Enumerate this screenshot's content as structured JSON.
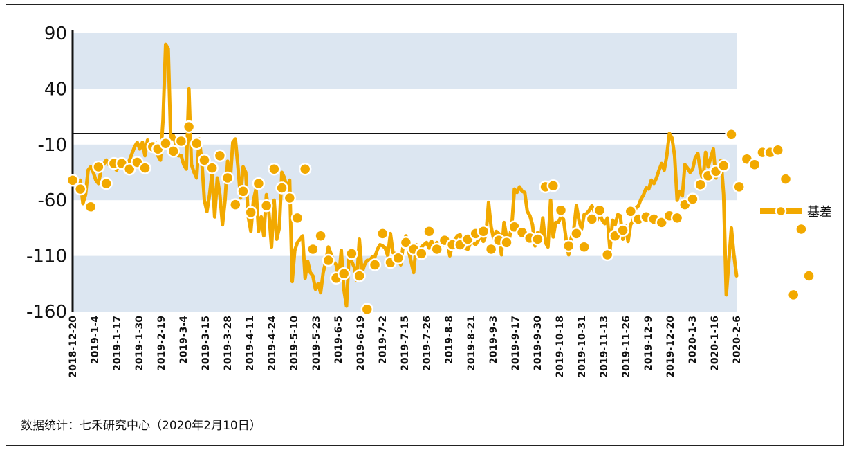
{
  "chart_data": {
    "type": "line",
    "ylim": [
      -160,
      90
    ],
    "yticks": [
      90,
      40,
      -10,
      -60,
      -110,
      -160
    ],
    "ytick_labels": [
      "90",
      "40",
      "-10",
      "-60",
      "-110",
      "-160"
    ],
    "zero_line": 0,
    "bands": [
      [
        40,
        90
      ],
      [
        -60,
        -10
      ],
      [
        -160,
        -110
      ]
    ],
    "colors": {
      "line": "#F2A900",
      "marker_fill": "#F2A900",
      "marker_stroke": "#ffffff",
      "band": "#DCE6F1",
      "axis": "#111111"
    },
    "x_tick_labels": [
      "2018-12-20",
      "2019-1-4",
      "2019-1-17",
      "2019-1-30",
      "2019-2-19",
      "2019-3-4",
      "2019-3-15",
      "2019-3-28",
      "2019-4-11",
      "2019-4-24",
      "2019-5-10",
      "2019-5-23",
      "2019-6-5",
      "2019-6-19",
      "2019-7-2",
      "2019-7-15",
      "2019-7-26",
      "2019-8-8",
      "2019-8-21",
      "2019-9-3",
      "2019-9-17",
      "2019-9-30",
      "2019-10-18",
      "2019-10-31",
      "2019-11-13",
      "2019-11-26",
      "2019-12-9",
      "2019-12-20",
      "2020-1-3",
      "2020-1-16",
      "2020-2-6"
    ],
    "series": [
      {
        "name": "基差",
        "values": [
          -40,
          -45,
          -48,
          -42,
          -63,
          -55,
          -33,
          -30,
          -35,
          -42,
          -45,
          -33,
          -28,
          -24,
          -28,
          -26,
          -30,
          -33,
          -28,
          -26,
          -30,
          -33,
          -24,
          -18,
          -12,
          -8,
          -14,
          -8,
          -20,
          -6,
          -12,
          -15,
          -8,
          -20,
          -24,
          12,
          80,
          76,
          -6,
          -2,
          -10,
          -20,
          -20,
          -28,
          -32,
          40,
          -28,
          -35,
          -40,
          -5,
          -25,
          -60,
          -70,
          -55,
          -35,
          -75,
          -40,
          -55,
          -82,
          -60,
          -25,
          -42,
          -8,
          -5,
          -30,
          -58,
          -30,
          -35,
          -75,
          -88,
          -60,
          -50,
          -88,
          -75,
          -92,
          -55,
          -72,
          -102,
          -60,
          -95,
          -85,
          -35,
          -40,
          -50,
          -42,
          -133,
          -105,
          -98,
          -95,
          -92,
          -130,
          -115,
          -125,
          -128,
          -140,
          -135,
          -143,
          -125,
          -115,
          -102,
          -108,
          -115,
          -118,
          -130,
          -105,
          -140,
          -155,
          -108,
          -115,
          -120,
          -132,
          -95,
          -125,
          -118,
          -114,
          -114,
          -111,
          -111,
          -104,
          -100,
          -101,
          -103,
          -110,
          -90,
          -107,
          -108,
          -112,
          -118,
          -100,
          -92,
          -105,
          -115,
          -125,
          -100,
          -108,
          -102,
          -100,
          -98,
          -103,
          -97,
          -103,
          -98,
          -103,
          -101,
          -96,
          -96,
          -110,
          -100,
          -95,
          -92,
          -91,
          -103,
          -103,
          -104,
          -98,
          -98,
          -100,
          -96,
          -91,
          -97,
          -91,
          -62,
          -84,
          -95,
          -88,
          -90,
          -109,
          -80,
          -93,
          -95,
          -83,
          -50,
          -53,
          -48,
          -52,
          -53,
          -70,
          -74,
          -82,
          -101,
          -89,
          -98,
          -76,
          -98,
          -102,
          -60,
          -93,
          -80,
          -80,
          -75,
          -77,
          -95,
          -109,
          -94,
          -86,
          -65,
          -78,
          -86,
          -73,
          -72,
          -69,
          -65,
          -71,
          -78,
          -72,
          -78,
          -81,
          -76,
          -105,
          -78,
          -82,
          -73,
          -74,
          -95,
          -83,
          -97,
          -82,
          -78,
          -67,
          -65,
          -59,
          -55,
          -49,
          -50,
          -42,
          -45,
          -40,
          -33,
          -27,
          -33,
          -20,
          0,
          -4,
          -20,
          -60,
          -52,
          -56,
          -28,
          -31,
          -35,
          -32,
          -22,
          -18,
          -34,
          -42,
          -17,
          -30,
          -22,
          -14,
          -40,
          -30,
          -24,
          -55,
          -145,
          -115,
          -85,
          -110,
          -128
        ],
        "markers": [
          [
            0,
            -42
          ],
          [
            3,
            -50
          ],
          [
            7,
            -66
          ],
          [
            10,
            -30
          ],
          [
            13,
            -45
          ],
          [
            16,
            -27
          ],
          [
            19,
            -27
          ],
          [
            22,
            -32
          ],
          [
            25,
            -26
          ],
          [
            28,
            -31
          ],
          [
            31,
            -12
          ],
          [
            33,
            -14
          ],
          [
            36,
            -9
          ],
          [
            39,
            -16
          ],
          [
            42,
            -7
          ],
          [
            45,
            6
          ],
          [
            48,
            -9
          ],
          [
            51,
            -24
          ],
          [
            54,
            -31
          ],
          [
            57,
            -20
          ],
          [
            60,
            -40
          ],
          [
            63,
            -64
          ],
          [
            66,
            -52
          ],
          [
            69,
            -71
          ],
          [
            72,
            -45
          ],
          [
            75,
            -65
          ],
          [
            78,
            -32
          ],
          [
            81,
            -49
          ],
          [
            84,
            -58
          ],
          [
            87,
            -76
          ],
          [
            90,
            -32
          ],
          [
            93,
            -104
          ],
          [
            96,
            -92
          ],
          [
            99,
            -114
          ],
          [
            102,
            -130
          ],
          [
            105,
            -126
          ],
          [
            108,
            -108
          ],
          [
            111,
            -128
          ],
          [
            114,
            -158
          ],
          [
            117,
            -118
          ],
          [
            120,
            -90
          ],
          [
            123,
            -116
          ],
          [
            126,
            -112
          ],
          [
            129,
            -98
          ],
          [
            132,
            -104
          ],
          [
            135,
            -108
          ],
          [
            138,
            -88
          ],
          [
            141,
            -104
          ],
          [
            144,
            -96
          ],
          [
            147,
            -100
          ],
          [
            150,
            -100
          ],
          [
            153,
            -95
          ],
          [
            156,
            -90
          ],
          [
            159,
            -88
          ],
          [
            162,
            -104
          ],
          [
            165,
            -96
          ],
          [
            168,
            -98
          ],
          [
            171,
            -84
          ],
          [
            174,
            -89
          ],
          [
            177,
            -94
          ],
          [
            180,
            -95
          ],
          [
            183,
            -48
          ],
          [
            186,
            -47
          ],
          [
            189,
            -69
          ],
          [
            192,
            -101
          ],
          [
            195,
            -90
          ],
          [
            198,
            -102
          ],
          [
            201,
            -77
          ],
          [
            204,
            -69
          ],
          [
            207,
            -109
          ],
          [
            210,
            -92
          ],
          [
            213,
            -87
          ],
          [
            216,
            -70
          ],
          [
            219,
            -77
          ],
          [
            222,
            -75
          ],
          [
            225,
            -77
          ],
          [
            228,
            -80
          ],
          [
            231,
            -74
          ],
          [
            234,
            -76
          ],
          [
            237,
            -64
          ],
          [
            240,
            -59
          ],
          [
            243,
            -46
          ],
          [
            246,
            -38
          ],
          [
            249,
            -34
          ],
          [
            252,
            -29
          ],
          [
            255,
            -1
          ],
          [
            258,
            -48
          ],
          [
            261,
            -23
          ],
          [
            264,
            -28
          ],
          [
            267,
            -17
          ],
          [
            270,
            -17
          ],
          [
            273,
            -15
          ],
          [
            276,
            -41
          ],
          [
            279,
            -145
          ],
          [
            282,
            -86
          ],
          [
            285,
            -128
          ]
        ]
      }
    ],
    "legend": {
      "position": "right",
      "label": "基差"
    }
  },
  "source_note": "数据统计：七禾研究中心（2020年2月10日）"
}
